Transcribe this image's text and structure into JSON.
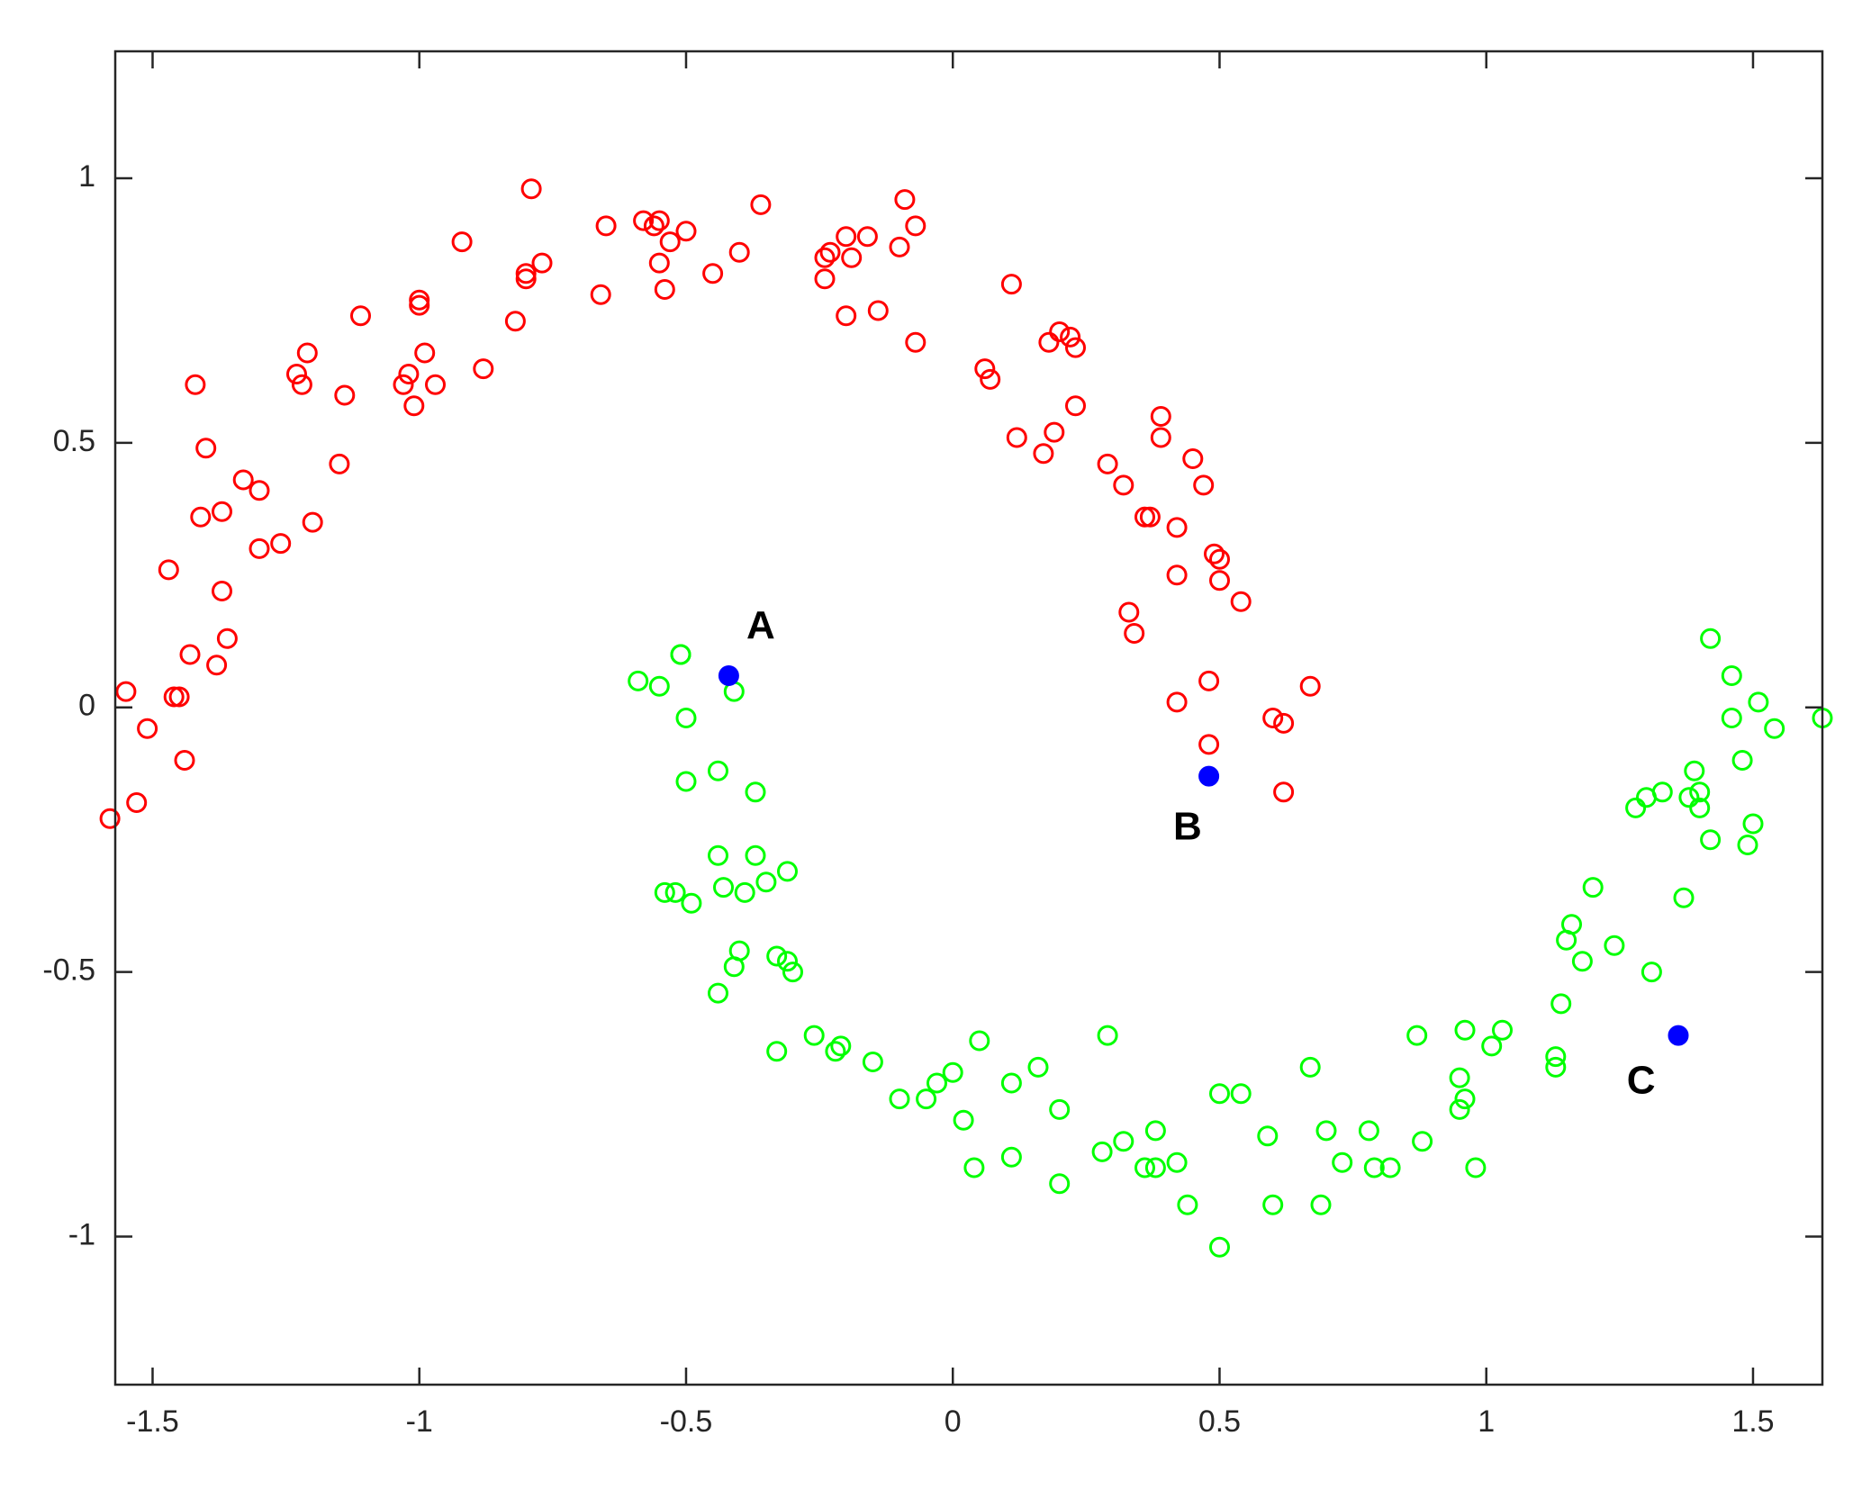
{
  "chart_data": {
    "type": "scatter",
    "title": "",
    "xlabel": "",
    "ylabel": "",
    "xlim": [
      -1.57,
      1.63
    ],
    "ylim": [
      -1.28,
      1.24
    ],
    "x_ticks": [
      -1.5,
      -1,
      -0.5,
      0,
      0.5,
      1,
      1.5
    ],
    "x_tick_labels": [
      "-1.5",
      "-1",
      "-0.5",
      "0",
      "0.5",
      "1",
      "1.5"
    ],
    "y_ticks": [
      1,
      0.5,
      0,
      -0.5,
      -1
    ],
    "y_tick_labels": [
      "1",
      "0.5",
      "0",
      "-0.5",
      "-1"
    ],
    "grid": false,
    "series": [
      {
        "marker": "open-circle",
        "color": "#ff0000",
        "points": [
          [
            -1.58,
            -0.21
          ],
          [
            -1.55,
            0.03
          ],
          [
            -1.53,
            -0.18
          ],
          [
            -1.51,
            -0.04
          ],
          [
            -1.47,
            0.26
          ],
          [
            -1.46,
            0.02
          ],
          [
            -1.45,
            0.02
          ],
          [
            -1.44,
            -0.1
          ],
          [
            -1.43,
            0.1
          ],
          [
            -1.42,
            0.61
          ],
          [
            -1.41,
            0.36
          ],
          [
            -1.4,
            0.49
          ],
          [
            -1.38,
            0.08
          ],
          [
            -1.37,
            0.37
          ],
          [
            -1.37,
            0.22
          ],
          [
            -1.36,
            0.13
          ],
          [
            -1.33,
            0.43
          ],
          [
            -1.3,
            0.41
          ],
          [
            -1.3,
            0.3
          ],
          [
            -1.26,
            0.31
          ],
          [
            -1.23,
            0.63
          ],
          [
            -1.22,
            0.61
          ],
          [
            -1.21,
            0.67
          ],
          [
            -1.2,
            0.35
          ],
          [
            -1.15,
            0.46
          ],
          [
            -1.14,
            0.59
          ],
          [
            -1.11,
            0.74
          ],
          [
            -1.03,
            0.61
          ],
          [
            -1.02,
            0.63
          ],
          [
            -1.01,
            0.57
          ],
          [
            -1.0,
            0.77
          ],
          [
            -1.0,
            0.76
          ],
          [
            -0.99,
            0.67
          ],
          [
            -0.97,
            0.61
          ],
          [
            -0.92,
            0.88
          ],
          [
            -0.88,
            0.64
          ],
          [
            -0.82,
            0.73
          ],
          [
            -0.8,
            0.81
          ],
          [
            -0.8,
            0.82
          ],
          [
            -0.79,
            0.98
          ],
          [
            -0.77,
            0.84
          ],
          [
            -0.66,
            0.78
          ],
          [
            -0.65,
            0.91
          ],
          [
            -0.58,
            0.92
          ],
          [
            -0.56,
            0.91
          ],
          [
            -0.55,
            0.92
          ],
          [
            -0.55,
            0.84
          ],
          [
            -0.54,
            0.79
          ],
          [
            -0.53,
            0.88
          ],
          [
            -0.5,
            0.9
          ],
          [
            -0.45,
            0.82
          ],
          [
            -0.4,
            0.86
          ],
          [
            -0.36,
            0.95
          ],
          [
            -0.24,
            0.85
          ],
          [
            -0.24,
            0.81
          ],
          [
            -0.23,
            0.86
          ],
          [
            -0.2,
            0.89
          ],
          [
            -0.2,
            0.74
          ],
          [
            -0.19,
            0.85
          ],
          [
            -0.16,
            0.89
          ],
          [
            -0.14,
            0.75
          ],
          [
            -0.1,
            0.87
          ],
          [
            -0.09,
            0.96
          ],
          [
            -0.07,
            0.91
          ],
          [
            -0.07,
            0.69
          ],
          [
            0.06,
            0.64
          ],
          [
            0.07,
            0.62
          ],
          [
            0.11,
            0.8
          ],
          [
            0.12,
            0.51
          ],
          [
            0.17,
            0.48
          ],
          [
            0.18,
            0.69
          ],
          [
            0.19,
            0.52
          ],
          [
            0.2,
            0.71
          ],
          [
            0.22,
            0.7
          ],
          [
            0.23,
            0.57
          ],
          [
            0.23,
            0.68
          ],
          [
            0.29,
            0.46
          ],
          [
            0.32,
            0.42
          ],
          [
            0.33,
            0.18
          ],
          [
            0.34,
            0.14
          ],
          [
            0.36,
            0.36
          ],
          [
            0.37,
            0.36
          ],
          [
            0.39,
            0.55
          ],
          [
            0.39,
            0.51
          ],
          [
            0.42,
            0.34
          ],
          [
            0.42,
            0.25
          ],
          [
            0.42,
            0.01
          ],
          [
            0.45,
            0.47
          ],
          [
            0.47,
            0.42
          ],
          [
            0.48,
            0.05
          ],
          [
            0.48,
            -0.07
          ],
          [
            0.49,
            0.29
          ],
          [
            0.5,
            0.24
          ],
          [
            0.5,
            0.28
          ],
          [
            0.54,
            0.2
          ],
          [
            0.6,
            -0.02
          ],
          [
            0.62,
            -0.03
          ],
          [
            0.62,
            -0.16
          ],
          [
            0.67,
            0.04
          ]
        ]
      },
      {
        "marker": "open-circle",
        "color": "#00ff00",
        "points": [
          [
            -0.59,
            0.05
          ],
          [
            -0.55,
            0.04
          ],
          [
            -0.54,
            -0.35
          ],
          [
            -0.52,
            -0.35
          ],
          [
            -0.51,
            0.1
          ],
          [
            -0.51,
            0.1
          ],
          [
            -0.5,
            -0.02
          ],
          [
            -0.5,
            -0.14
          ],
          [
            -0.49,
            -0.37
          ],
          [
            -0.44,
            -0.54
          ],
          [
            -0.44,
            -0.12
          ],
          [
            -0.44,
            -0.28
          ],
          [
            -0.43,
            -0.34
          ],
          [
            -0.41,
            0.03
          ],
          [
            -0.41,
            -0.49
          ],
          [
            -0.4,
            -0.46
          ],
          [
            -0.39,
            -0.35
          ],
          [
            -0.37,
            -0.16
          ],
          [
            -0.37,
            -0.28
          ],
          [
            -0.35,
            -0.33
          ],
          [
            -0.33,
            -0.47
          ],
          [
            -0.33,
            -0.65
          ],
          [
            -0.31,
            -0.48
          ],
          [
            -0.31,
            -0.31
          ],
          [
            -0.3,
            -0.5
          ],
          [
            -0.26,
            -0.62
          ],
          [
            -0.22,
            -0.65
          ],
          [
            -0.21,
            -0.64
          ],
          [
            -0.15,
            -0.67
          ],
          [
            -0.1,
            -0.74
          ],
          [
            -0.05,
            -0.74
          ],
          [
            -0.03,
            -0.71
          ],
          [
            0.0,
            -0.69
          ],
          [
            0.02,
            -0.78
          ],
          [
            0.04,
            -0.87
          ],
          [
            0.05,
            -0.63
          ],
          [
            0.11,
            -0.71
          ],
          [
            0.11,
            -0.85
          ],
          [
            0.16,
            -0.68
          ],
          [
            0.2,
            -0.9
          ],
          [
            0.2,
            -0.76
          ],
          [
            0.28,
            -0.84
          ],
          [
            0.29,
            -0.62
          ],
          [
            0.32,
            -0.82
          ],
          [
            0.36,
            -0.87
          ],
          [
            0.38,
            -0.87
          ],
          [
            0.38,
            -0.8
          ],
          [
            0.42,
            -0.86
          ],
          [
            0.44,
            -0.94
          ],
          [
            0.5,
            -1.02
          ],
          [
            0.5,
            -0.73
          ],
          [
            0.54,
            -0.73
          ],
          [
            0.59,
            -0.81
          ],
          [
            0.6,
            -0.94
          ],
          [
            0.67,
            -0.68
          ],
          [
            0.69,
            -0.94
          ],
          [
            0.7,
            -0.8
          ],
          [
            0.73,
            -0.86
          ],
          [
            0.78,
            -0.8
          ],
          [
            0.79,
            -0.87
          ],
          [
            0.82,
            -0.87
          ],
          [
            0.87,
            -0.62
          ],
          [
            0.88,
            -0.82
          ],
          [
            0.95,
            -0.7
          ],
          [
            0.95,
            -0.76
          ],
          [
            0.96,
            -0.61
          ],
          [
            0.96,
            -0.74
          ],
          [
            0.98,
            -0.87
          ],
          [
            1.01,
            -0.64
          ],
          [
            1.03,
            -0.61
          ],
          [
            1.13,
            -0.66
          ],
          [
            1.13,
            -0.68
          ],
          [
            1.14,
            -0.56
          ],
          [
            1.15,
            -0.44
          ],
          [
            1.16,
            -0.41
          ],
          [
            1.18,
            -0.48
          ],
          [
            1.2,
            -0.34
          ],
          [
            1.24,
            -0.45
          ],
          [
            1.28,
            -0.19
          ],
          [
            1.3,
            -0.17
          ],
          [
            1.31,
            -0.5
          ],
          [
            1.33,
            -0.16
          ],
          [
            1.37,
            -0.36
          ],
          [
            1.38,
            -0.17
          ],
          [
            1.39,
            -0.12
          ],
          [
            1.4,
            -0.16
          ],
          [
            1.4,
            -0.19
          ],
          [
            1.42,
            0.13
          ],
          [
            1.42,
            -0.25
          ],
          [
            1.46,
            0.06
          ],
          [
            1.46,
            -0.02
          ],
          [
            1.48,
            -0.1
          ],
          [
            1.49,
            -0.26
          ],
          [
            1.5,
            -0.22
          ],
          [
            1.51,
            0.01
          ],
          [
            1.54,
            -0.04
          ],
          [
            1.63,
            -0.02
          ]
        ]
      },
      {
        "marker": "filled-circle",
        "color": "#0000ff",
        "points": [
          [
            -0.42,
            0.06
          ],
          [
            0.48,
            -0.13
          ],
          [
            1.36,
            -0.62
          ]
        ]
      }
    ],
    "annotations": [
      {
        "text": "A",
        "x": -0.36,
        "y": 0.15
      },
      {
        "text": "B",
        "x": 0.44,
        "y": -0.23
      },
      {
        "text": "C",
        "x": 1.29,
        "y": -0.71
      }
    ]
  }
}
